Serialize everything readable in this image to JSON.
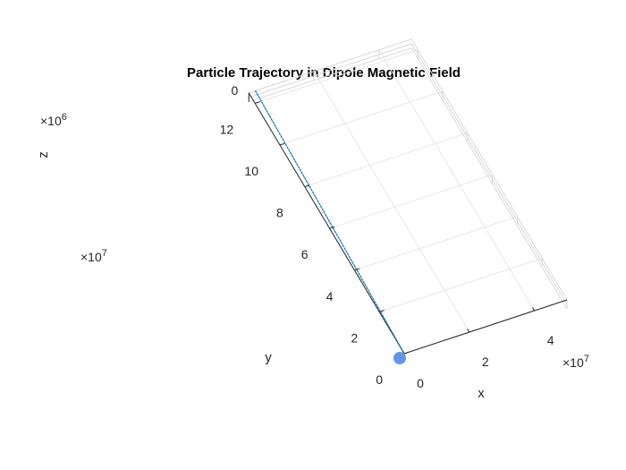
{
  "chart_data": {
    "type": "line",
    "dimensions": 3,
    "title": "Particle Trajectory in Dipole Magnetic Field",
    "xlabel": "x",
    "ylabel": "y",
    "zlabel": "z",
    "x_ticks": [
      "0",
      "2",
      "4"
    ],
    "y_ticks": [
      "0",
      "2",
      "4",
      "6",
      "8",
      "10",
      "12"
    ],
    "z_ticks": [
      "0"
    ],
    "x_exponent": "×10",
    "x_exponent_power": "7",
    "y_exponent": "×10",
    "y_exponent_power": "7",
    "z_exponent": "×10",
    "z_exponent_power": "6",
    "xlim": [
      0,
      5
    ],
    "ylim": [
      0,
      12.5
    ],
    "zlim": [
      0,
      0
    ],
    "grid": true,
    "series": [
      {
        "line_color": "#0072BD",
        "x": [
          0,
          0.2
        ],
        "y": [
          0,
          12.5
        ],
        "z": [
          0,
          0
        ]
      }
    ],
    "start_marker": {
      "x": 0,
      "y": 0,
      "z": 0,
      "color": "#6495ED"
    }
  }
}
